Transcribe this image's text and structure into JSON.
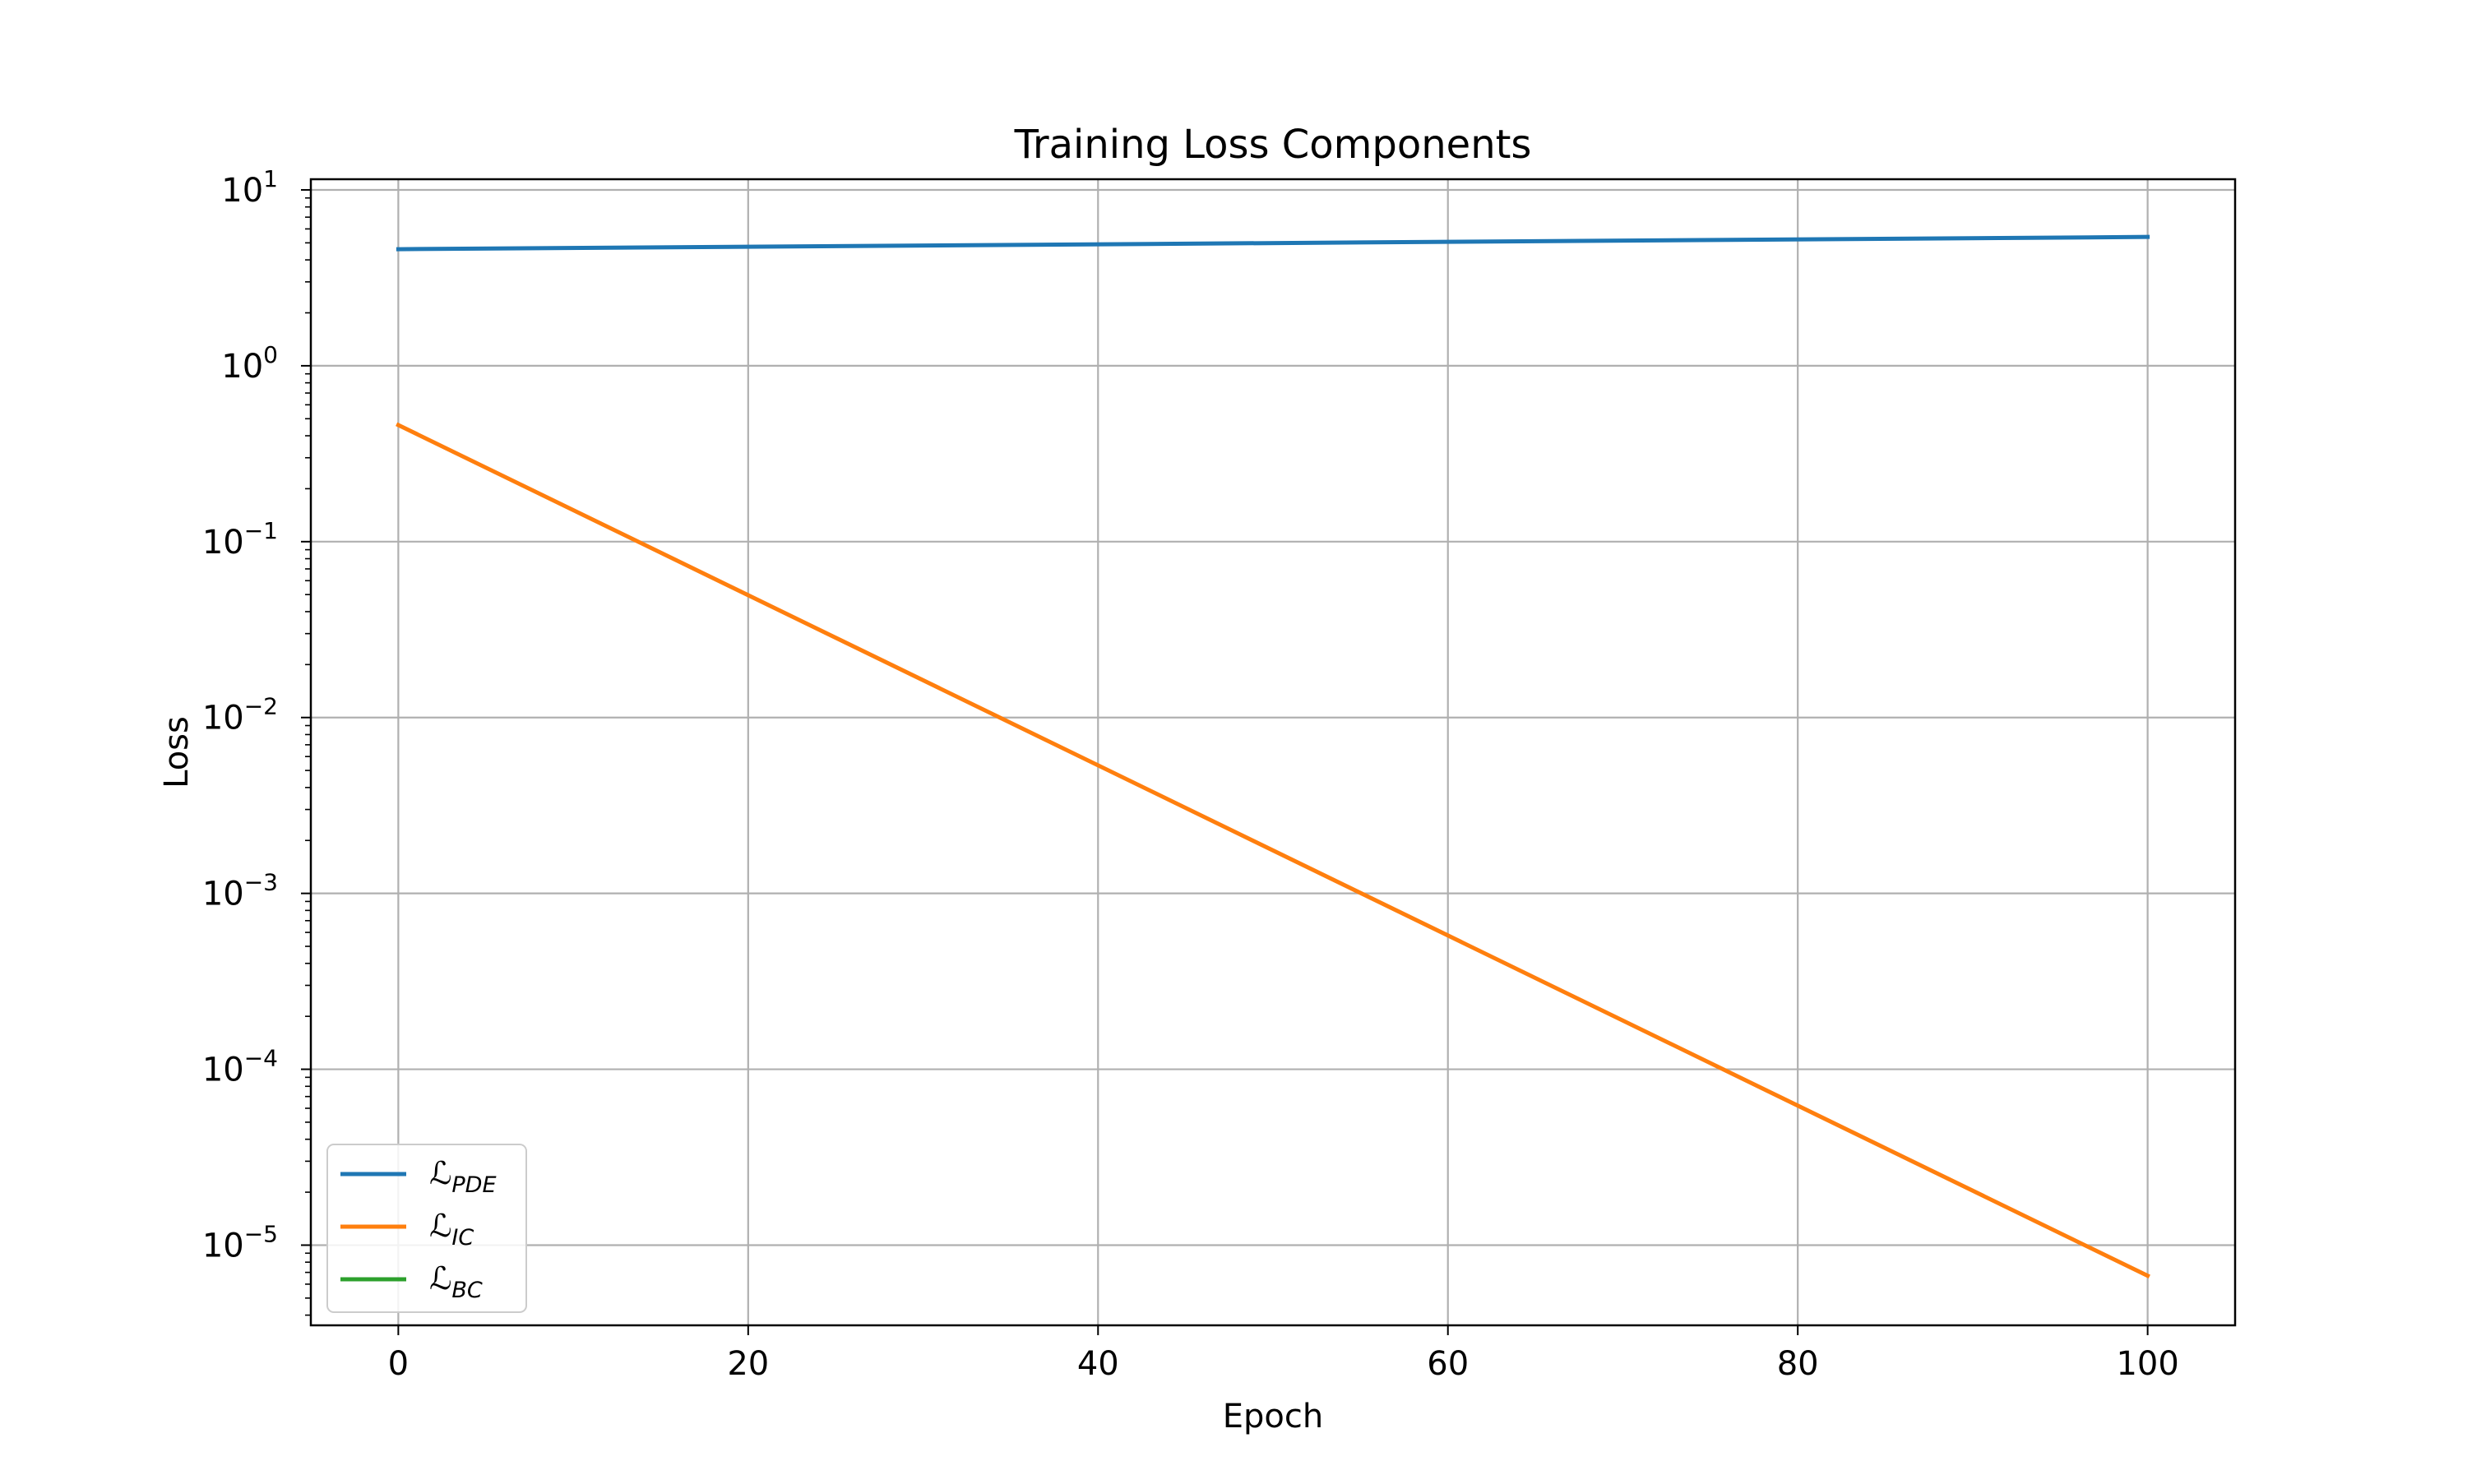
{
  "chart_data": {
    "type": "line",
    "title": "Training Loss Components",
    "xlabel": "Epoch",
    "ylabel": "Loss",
    "yscale": "log",
    "xlim": [
      -5,
      105
    ],
    "ylim": [
      3.5e-06,
      11.5
    ],
    "grid": true,
    "legend_position": "lower-left",
    "x_ticks": [
      0,
      20,
      40,
      60,
      80,
      100
    ],
    "y_ticks": [
      {
        "value": 10,
        "base": "10",
        "exp": "1"
      },
      {
        "value": 1,
        "base": "10",
        "exp": "0"
      },
      {
        "value": 0.1,
        "base": "10",
        "exp": "−1"
      },
      {
        "value": 0.01,
        "base": "10",
        "exp": "−2"
      },
      {
        "value": 0.001,
        "base": "10",
        "exp": "−3"
      },
      {
        "value": 0.0001,
        "base": "10",
        "exp": "−4"
      },
      {
        "value": 1e-05,
        "base": "10",
        "exp": "−5"
      }
    ],
    "series": [
      {
        "name": "PDE",
        "label_main": "ℒ",
        "label_sub": "PDE",
        "color": "#1f77b4",
        "x": [
          0,
          100
        ],
        "y": [
          4.6,
          5.4
        ]
      },
      {
        "name": "IC",
        "label_main": "ℒ",
        "label_sub": "IC",
        "color": "#ff7f0e",
        "x": [
          0,
          100
        ],
        "y": [
          0.46,
          6.7e-06
        ]
      },
      {
        "name": "BC",
        "label_main": "ℒ",
        "label_sub": "BC",
        "color": "#2ca02c",
        "x": [],
        "y": []
      }
    ]
  }
}
